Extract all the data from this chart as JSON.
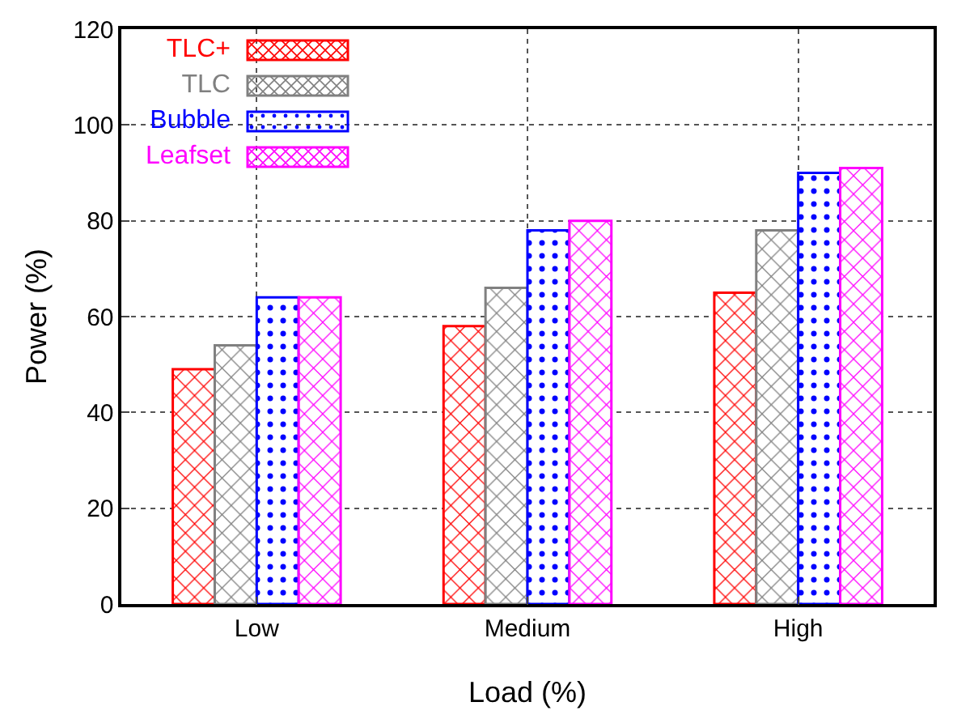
{
  "chart_data": {
    "type": "bar",
    "xlabel": "Load (%)",
    "ylabel": "Power (%)",
    "categories": [
      "Low",
      "Medium",
      "High"
    ],
    "series": [
      {
        "name": "TLC+",
        "color": "#ff0000",
        "values": [
          49,
          58,
          65
        ]
      },
      {
        "name": "TLC",
        "color": "#808080",
        "values": [
          54,
          66,
          78
        ]
      },
      {
        "name": "Bubble",
        "color": "#0000ff",
        "values": [
          64,
          78,
          90
        ]
      },
      {
        "name": "Leafset",
        "color": "#ff00ff",
        "values": [
          64,
          80,
          91
        ]
      }
    ],
    "ylim": [
      0,
      120
    ],
    "yticks": [
      0,
      20,
      40,
      60,
      80,
      100,
      120
    ],
    "grid": true,
    "legend": "top left"
  }
}
